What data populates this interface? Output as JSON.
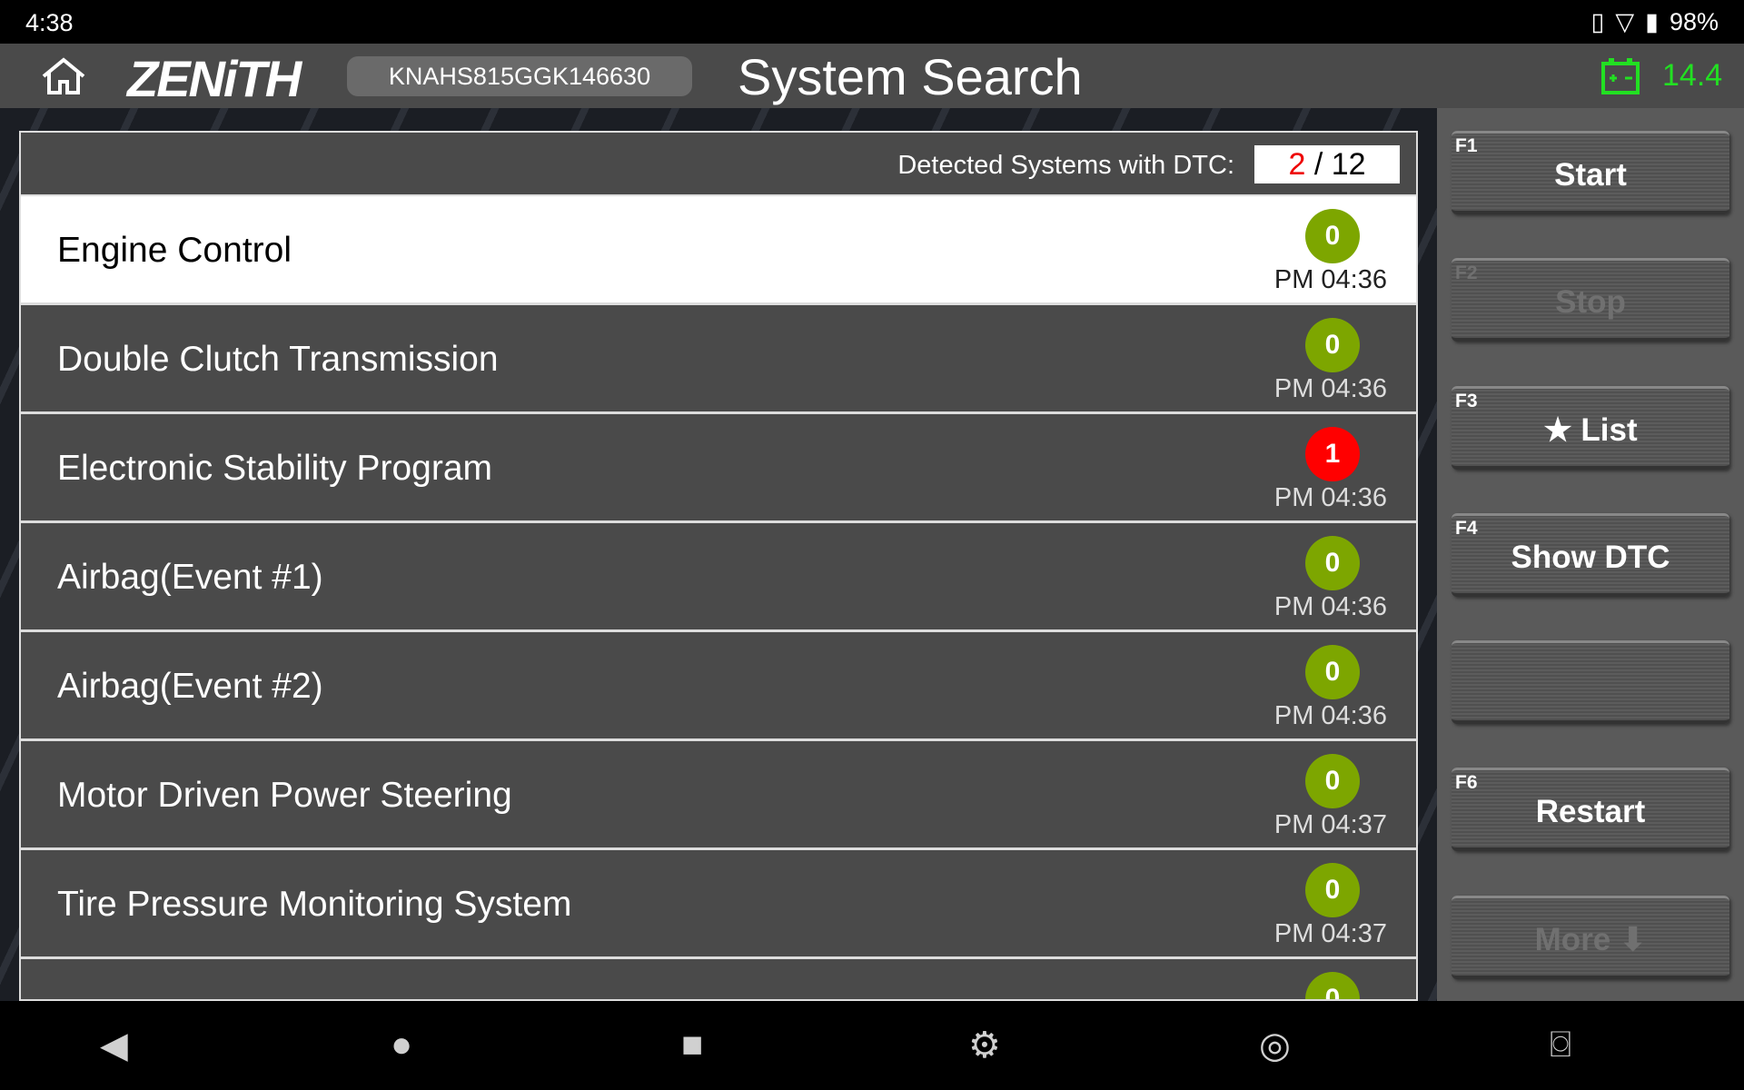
{
  "status": {
    "time": "4:38",
    "battery": "98%"
  },
  "header": {
    "logo": "ZENiTH",
    "vin": "KNAHS815GGK146630",
    "title": "System Search",
    "voltage": "14.4"
  },
  "list": {
    "detected_label": "Detected Systems with DTC:",
    "detected": "2",
    "sep": " / ",
    "total": "12",
    "rows": [
      {
        "name": "Engine Control",
        "dtc": "0",
        "time": "PM 04:36",
        "selected": true
      },
      {
        "name": "Double Clutch Transmission",
        "dtc": "0",
        "time": "PM 04:36"
      },
      {
        "name": "Electronic Stability Program",
        "dtc": "1",
        "time": "PM 04:36"
      },
      {
        "name": "Airbag(Event #1)",
        "dtc": "0",
        "time": "PM 04:36"
      },
      {
        "name": "Airbag(Event #2)",
        "dtc": "0",
        "time": "PM 04:36"
      },
      {
        "name": "Motor Driven Power Steering",
        "dtc": "0",
        "time": "PM 04:37"
      },
      {
        "name": "Tire Pressure Monitoring System",
        "dtc": "0",
        "time": "PM 04:37"
      },
      {
        "name": "",
        "dtc": "0",
        "time": ""
      }
    ]
  },
  "buttons": [
    {
      "key": "F1",
      "label": "Start",
      "enabled": true
    },
    {
      "key": "F2",
      "label": "Stop",
      "enabled": false
    },
    {
      "key": "F3",
      "label": "★ List",
      "enabled": true
    },
    {
      "key": "F4",
      "label": "Show DTC",
      "enabled": true
    },
    {
      "key": "",
      "label": "",
      "enabled": true
    },
    {
      "key": "F6",
      "label": "Restart",
      "enabled": true
    },
    {
      "key": "",
      "label": "More ⬇",
      "enabled": false
    }
  ],
  "colors": {
    "ok": "#7da600",
    "error": "#ff0000",
    "voltage": "#22e022"
  }
}
